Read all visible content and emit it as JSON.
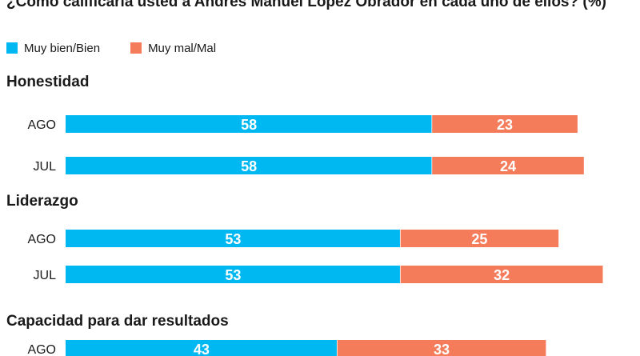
{
  "chart_data": {
    "type": "bar",
    "orientation": "horizontal",
    "stacked": true,
    "title": "¿Cómo calificaría usted a Andrés Manuel López Obrador en cada uno de ellos? (%)",
    "legend": [
      {
        "name": "Muy bien/Bien",
        "color": "#00b8f1"
      },
      {
        "name": "Muy mal/Mal",
        "color": "#f47c5a"
      }
    ],
    "legend_position": "top-left",
    "xlim": [
      0,
      100
    ],
    "groups": [
      {
        "name": "Honestidad",
        "rows": [
          {
            "label": "AGO",
            "values": [
              58,
              23
            ]
          },
          {
            "label": "JUL",
            "values": [
              58,
              24
            ]
          }
        ]
      },
      {
        "name": "Liderazgo",
        "rows": [
          {
            "label": "AGO",
            "values": [
              53,
              25
            ]
          },
          {
            "label": "JUL",
            "values": [
              53,
              32
            ]
          }
        ]
      },
      {
        "name": "Capacidad para dar resultados",
        "rows": [
          {
            "label": "AGO",
            "values": [
              43,
              33
            ]
          }
        ]
      }
    ]
  }
}
